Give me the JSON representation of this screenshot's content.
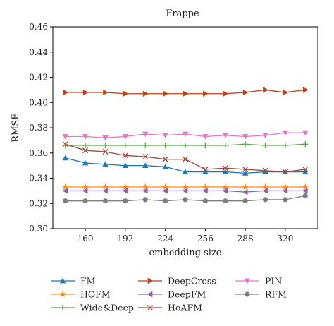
{
  "chart_data": {
    "type": "line",
    "title": "Frappe",
    "xlabel": "embedding size",
    "ylabel": "RMSE",
    "x": [
      144,
      160,
      176,
      192,
      208,
      224,
      240,
      256,
      272,
      288,
      304,
      320,
      336
    ],
    "xticks": [
      160,
      192,
      224,
      256,
      288,
      320
    ],
    "xtick_labels": [
      "160",
      "192",
      "224",
      "256",
      "288",
      "320"
    ],
    "xlim": [
      134,
      346
    ],
    "ylim": [
      0.3,
      0.46
    ],
    "yticks": [
      0.3,
      0.32,
      0.34,
      0.36,
      0.38,
      0.4,
      0.42,
      0.44,
      0.46
    ],
    "ytick_labels": [
      "0.30",
      "0.32",
      "0.34",
      "0.36",
      "0.38",
      "0.40",
      "0.42",
      "0.44",
      "0.46"
    ],
    "grid": false,
    "legend_position": "below",
    "series": [
      {
        "name": "FM",
        "color": "#1f77b4",
        "marker": "triangle-up",
        "values": [
          0.356,
          0.352,
          0.351,
          0.35,
          0.35,
          0.349,
          0.345,
          0.345,
          0.345,
          0.344,
          0.345,
          0.345,
          0.345
        ]
      },
      {
        "name": "DeepCross",
        "color": "#c1401a",
        "marker": "triangle-right",
        "values": [
          0.408,
          0.408,
          0.408,
          0.407,
          0.407,
          0.407,
          0.407,
          0.407,
          0.407,
          0.408,
          0.41,
          0.408,
          0.41
        ]
      },
      {
        "name": "PIN",
        "color": "#e377c2",
        "marker": "triangle-down",
        "values": [
          0.373,
          0.373,
          0.372,
          0.373,
          0.375,
          0.374,
          0.375,
          0.373,
          0.374,
          0.373,
          0.374,
          0.376,
          0.376
        ]
      },
      {
        "name": "HOFM",
        "color": "#ff8c1a",
        "marker": "star",
        "values": [
          0.333,
          0.333,
          0.333,
          0.333,
          0.333,
          0.333,
          0.333,
          0.333,
          0.333,
          0.333,
          0.333,
          0.333,
          0.333
        ]
      },
      {
        "name": "DeepFM",
        "color": "#8c62b0",
        "marker": "triangle-left",
        "values": [
          0.33,
          0.33,
          0.33,
          0.33,
          0.33,
          0.33,
          0.33,
          0.33,
          0.33,
          0.329,
          0.33,
          0.33,
          0.33
        ]
      },
      {
        "name": "RFM",
        "color": "#7f7f7f",
        "marker": "circle",
        "values": [
          0.322,
          0.322,
          0.322,
          0.322,
          0.323,
          0.322,
          0.323,
          0.322,
          0.322,
          0.322,
          0.323,
          0.323,
          0.326
        ]
      },
      {
        "name": "Wide&Deep",
        "color": "#5aa84a",
        "marker": "plus",
        "values": [
          0.366,
          0.366,
          0.366,
          0.366,
          0.366,
          0.366,
          0.366,
          0.366,
          0.366,
          0.367,
          0.366,
          0.366,
          0.367
        ]
      },
      {
        "name": "HoAFM",
        "color": "#a0463c",
        "marker": "x",
        "values": [
          0.367,
          0.362,
          0.361,
          0.358,
          0.357,
          0.355,
          0.355,
          0.347,
          0.348,
          0.347,
          0.346,
          0.345,
          0.347
        ]
      }
    ]
  }
}
